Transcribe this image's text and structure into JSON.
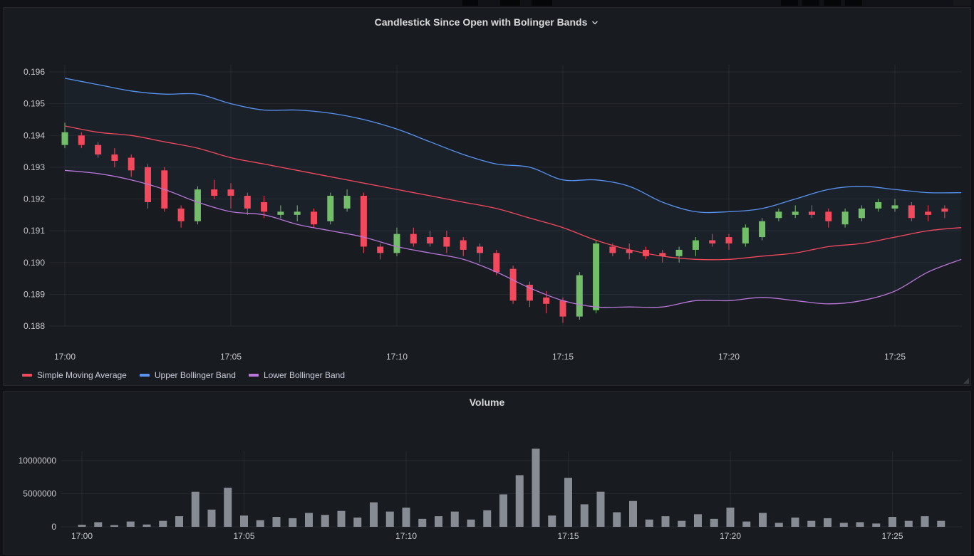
{
  "theme": {
    "page_bg": "#111217",
    "panel_bg": "#181b1f",
    "grid_color": "rgba(204,204,220,0.08)",
    "axis_text_color": "#c8c9ce",
    "red": "#f2495c",
    "green": "#73bf69",
    "blue": "#5794f2",
    "purple": "#b877d9",
    "volume_bar_color": "#878b93"
  },
  "candlestick_panel": {
    "title": "Candlestick Since Open with Bolinger Bands",
    "legend": [
      {
        "label": "Simple Moving Average",
        "color": "#f2495c"
      },
      {
        "label": "Upper Bollinger Band",
        "color": "#5794f2"
      },
      {
        "label": "Lower Bollinger Band",
        "color": "#b877d9"
      }
    ]
  },
  "volume_panel": {
    "title": "Volume"
  },
  "chart_data": [
    {
      "type": "candlestick",
      "title": "Candlestick Since Open with Bolinger Bands",
      "x_start_label": "17:00",
      "candle_interval_seconds": 30,
      "x_tick_labels": [
        "17:00",
        "17:05",
        "17:10",
        "17:15",
        "17:20",
        "17:25"
      ],
      "x_tick_minutes": [
        0,
        5,
        10,
        15,
        20,
        25
      ],
      "y_ticks": [
        0.188,
        0.189,
        0.19,
        0.191,
        0.192,
        0.193,
        0.194,
        0.195,
        0.196
      ],
      "ylim": [
        0.1876,
        0.1966
      ],
      "up_color": "#73bf69",
      "down_color": "#f2495c",
      "candles_ohlc": [
        [
          0.1937,
          0.1944,
          0.1936,
          0.1941
        ],
        [
          0.194,
          0.1941,
          0.1936,
          0.1937
        ],
        [
          0.1937,
          0.1938,
          0.1933,
          0.1934
        ],
        [
          0.1934,
          0.1936,
          0.193,
          0.1932
        ],
        [
          0.1933,
          0.1934,
          0.1927,
          0.1929
        ],
        [
          0.193,
          0.1931,
          0.1917,
          0.1919
        ],
        [
          0.1929,
          0.193,
          0.1916,
          0.1917
        ],
        [
          0.1917,
          0.1918,
          0.1911,
          0.1913
        ],
        [
          0.1913,
          0.1924,
          0.1912,
          0.1923
        ],
        [
          0.1923,
          0.1926,
          0.192,
          0.1921
        ],
        [
          0.1923,
          0.1925,
          0.1917,
          0.1921
        ],
        [
          0.1921,
          0.1922,
          0.1915,
          0.1917
        ],
        [
          0.1919,
          0.1921,
          0.1914,
          0.1916
        ],
        [
          0.1915,
          0.1918,
          0.1914,
          0.1916
        ],
        [
          0.1915,
          0.1918,
          0.1913,
          0.1916
        ],
        [
          0.1916,
          0.1917,
          0.1911,
          0.1912
        ],
        [
          0.1913,
          0.1922,
          0.1912,
          0.1921
        ],
        [
          0.1917,
          0.1923,
          0.1916,
          0.1921
        ],
        [
          0.1921,
          0.1922,
          0.1903,
          0.1905
        ],
        [
          0.1905,
          0.1906,
          0.1901,
          0.1903
        ],
        [
          0.1903,
          0.1911,
          0.1902,
          0.1909
        ],
        [
          0.1909,
          0.1911,
          0.1905,
          0.1906
        ],
        [
          0.1908,
          0.191,
          0.1905,
          0.1906
        ],
        [
          0.1908,
          0.191,
          0.1903,
          0.1905
        ],
        [
          0.1907,
          0.1908,
          0.1902,
          0.1904
        ],
        [
          0.1905,
          0.1906,
          0.19,
          0.1903
        ],
        [
          0.1903,
          0.1904,
          0.1896,
          0.1897
        ],
        [
          0.1898,
          0.1899,
          0.1887,
          0.1888
        ],
        [
          0.1893,
          0.1894,
          0.1886,
          0.1888
        ],
        [
          0.1889,
          0.1891,
          0.1884,
          0.1887
        ],
        [
          0.1888,
          0.1889,
          0.1881,
          0.1883
        ],
        [
          0.1883,
          0.1897,
          0.1882,
          0.1896
        ],
        [
          0.1885,
          0.1907,
          0.1884,
          0.1906
        ],
        [
          0.1905,
          0.1906,
          0.1902,
          0.1903
        ],
        [
          0.1904,
          0.1906,
          0.1901,
          0.1903
        ],
        [
          0.1904,
          0.1905,
          0.1901,
          0.1902
        ],
        [
          0.1903,
          0.1904,
          0.19,
          0.1902
        ],
        [
          0.1902,
          0.1905,
          0.19,
          0.1904
        ],
        [
          0.1904,
          0.1908,
          0.1902,
          0.1907
        ],
        [
          0.1907,
          0.1909,
          0.1905,
          0.1906
        ],
        [
          0.1908,
          0.1909,
          0.1904,
          0.1906
        ],
        [
          0.1906,
          0.1912,
          0.1905,
          0.1911
        ],
        [
          0.1908,
          0.1914,
          0.1907,
          0.1913
        ],
        [
          0.1914,
          0.1917,
          0.1913,
          0.1916
        ],
        [
          0.1915,
          0.1918,
          0.1914,
          0.1916
        ],
        [
          0.1916,
          0.1918,
          0.1914,
          0.1915
        ],
        [
          0.1916,
          0.1917,
          0.1911,
          0.1913
        ],
        [
          0.1912,
          0.1917,
          0.1911,
          0.1916
        ],
        [
          0.1914,
          0.1918,
          0.1913,
          0.1917
        ],
        [
          0.1917,
          0.192,
          0.1916,
          0.1919
        ],
        [
          0.1917,
          0.192,
          0.1916,
          0.1918
        ],
        [
          0.1918,
          0.1919,
          0.1913,
          0.1914
        ],
        [
          0.1916,
          0.1918,
          0.1913,
          0.1915
        ],
        [
          0.1917,
          0.1918,
          0.1914,
          0.1916
        ]
      ],
      "overlays": {
        "sma": {
          "label": "Simple Moving Average",
          "color": "#f2495c",
          "minute_step": 1,
          "values": [
            0.1943,
            0.1941,
            0.194,
            0.1938,
            0.1936,
            0.1933,
            0.1931,
            0.1929,
            0.1927,
            0.1925,
            0.1923,
            0.1921,
            0.1919,
            0.1917,
            0.1914,
            0.1911,
            0.1907,
            0.1904,
            0.1902,
            0.1901,
            0.1901,
            0.1902,
            0.1903,
            0.1905,
            0.1906,
            0.1908,
            0.191,
            0.1911
          ]
        },
        "upper_band": {
          "label": "Upper Bollinger Band",
          "color": "#5794f2",
          "minute_step": 1,
          "values": [
            0.1958,
            0.1956,
            0.1954,
            0.1953,
            0.1953,
            0.195,
            0.1948,
            0.1948,
            0.1947,
            0.1945,
            0.1942,
            0.1938,
            0.1934,
            0.1931,
            0.193,
            0.1926,
            0.1926,
            0.1924,
            0.1919,
            0.1916,
            0.1916,
            0.1917,
            0.192,
            0.1923,
            0.1924,
            0.1923,
            0.1922,
            0.1922
          ]
        },
        "lower_band": {
          "label": "Lower Bollinger Band",
          "color": "#b877d9",
          "minute_step": 1,
          "values": [
            0.1929,
            0.1928,
            0.1926,
            0.1923,
            0.1919,
            0.1916,
            0.1915,
            0.1912,
            0.191,
            0.1908,
            0.1905,
            0.1903,
            0.1901,
            0.1897,
            0.1892,
            0.1888,
            0.1886,
            0.1886,
            0.1886,
            0.1888,
            0.1888,
            0.1889,
            0.1888,
            0.1887,
            0.1888,
            0.1891,
            0.1897,
            0.1901
          ]
        }
      },
      "band_fill_color": "#5794f2",
      "band_fill_opacity": 0.05
    },
    {
      "type": "bar",
      "title": "Volume",
      "x_start_label": "17:00",
      "bar_interval_seconds": 30,
      "x_tick_labels": [
        "17:00",
        "17:05",
        "17:10",
        "17:15",
        "17:20",
        "17:25"
      ],
      "x_tick_minutes": [
        0,
        5,
        10,
        15,
        20,
        25
      ],
      "y_ticks": [
        0,
        5000000,
        10000000
      ],
      "ylim": [
        0,
        12500000
      ],
      "values": [
        300000,
        700000,
        250000,
        800000,
        350000,
        900000,
        1600000,
        5300000,
        2600000,
        5900000,
        1700000,
        1000000,
        1500000,
        1300000,
        2100000,
        1800000,
        2400000,
        1400000,
        3700000,
        2300000,
        2900000,
        1200000,
        1600000,
        2300000,
        1100000,
        2500000,
        4900000,
        7800000,
        11800000,
        1700000,
        7400000,
        3400000,
        5300000,
        2200000,
        3900000,
        1100000,
        1600000,
        900000,
        1900000,
        1200000,
        2900000,
        800000,
        2100000,
        600000,
        1400000,
        900000,
        1300000,
        600000,
        700000,
        500000,
        1500000,
        900000,
        1600000,
        900000
      ]
    }
  ]
}
